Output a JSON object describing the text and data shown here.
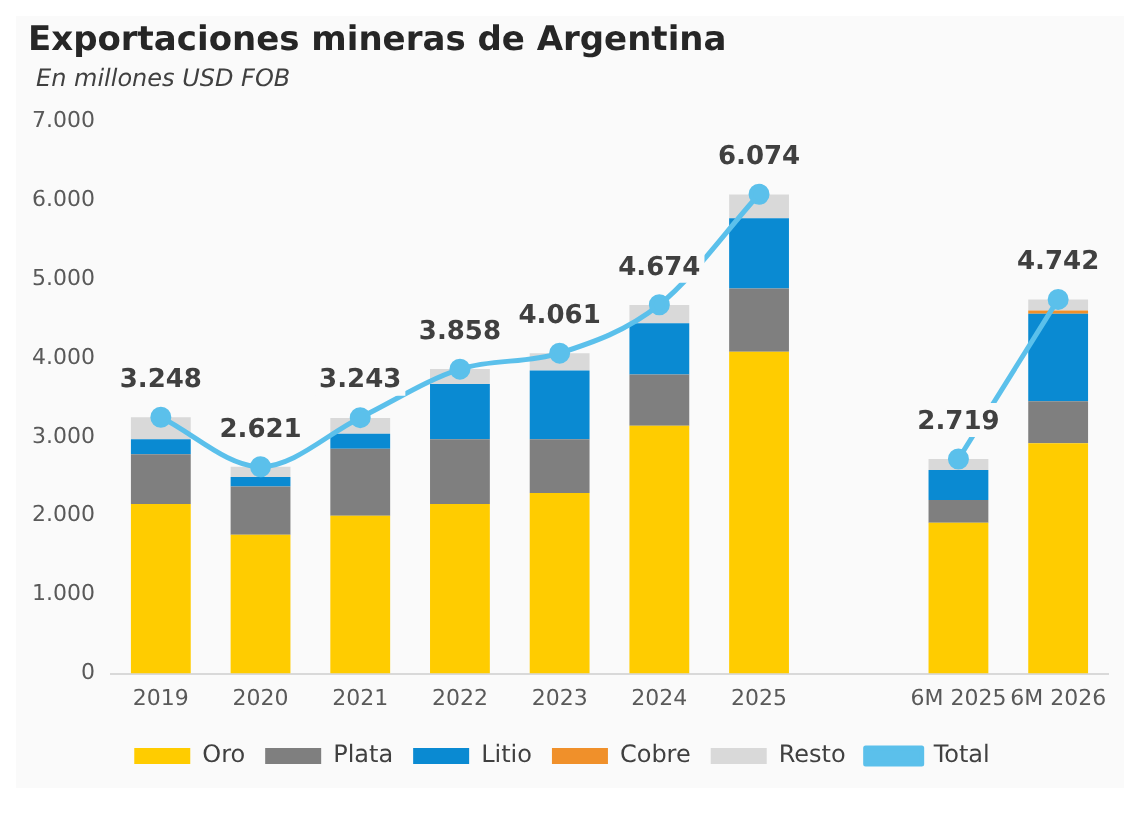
{
  "chart_data": {
    "type": "bar",
    "stacked": true,
    "title": "Exportaciones mineras de Argentina",
    "subtitle": "En millones USD FOB",
    "categories": [
      "2019",
      "2020",
      "2021",
      "2022",
      "2023",
      "2024",
      "2025",
      null,
      "6M 2025",
      "6M 2026"
    ],
    "series": [
      {
        "name": "Oro",
        "color": "#ffcc00",
        "values": [
          2150,
          1760,
          2000,
          2150,
          2290,
          3140,
          4080,
          null,
          1910,
          2920
        ]
      },
      {
        "name": "Plata",
        "color": "#7f7f7f",
        "values": [
          630,
          610,
          850,
          820,
          680,
          650,
          800,
          null,
          290,
          530
        ]
      },
      {
        "name": "Litio",
        "color": "#0a8ad2",
        "values": [
          190,
          120,
          190,
          700,
          870,
          650,
          890,
          null,
          380,
          1110
        ]
      },
      {
        "name": "Cobre",
        "color": "#f0902a",
        "values": [
          0,
          0,
          0,
          0,
          0,
          0,
          0,
          null,
          0,
          40
        ]
      },
      {
        "name": "Resto",
        "color": "#d9d9d9",
        "values": [
          280,
          130,
          200,
          190,
          220,
          230,
          300,
          null,
          140,
          140
        ]
      },
      {
        "name": "Total",
        "type": "line",
        "color": "#5bc0eb",
        "marker": "circle",
        "values": [
          3248,
          2621,
          3243,
          3858,
          4061,
          4674,
          6074,
          null,
          2719,
          4742
        ],
        "value_labels": [
          "3.248",
          "2.621",
          "3.243",
          "3.858",
          "4.061",
          "4.674",
          "6.074",
          null,
          "2.719",
          "4.742"
        ]
      }
    ],
    "ylim": [
      0,
      7000
    ],
    "yticks": [
      {
        "value": 0,
        "label": "0"
      },
      {
        "value": 1000,
        "label": "1.000"
      },
      {
        "value": 2000,
        "label": "2.000"
      },
      {
        "value": 3000,
        "label": "3.000"
      },
      {
        "value": 4000,
        "label": "4.000"
      },
      {
        "value": 5000,
        "label": "5.000"
      },
      {
        "value": 6000,
        "label": "6.000"
      },
      {
        "value": 7000,
        "label": "7.000"
      }
    ],
    "grid": false,
    "legend": "bottom"
  }
}
